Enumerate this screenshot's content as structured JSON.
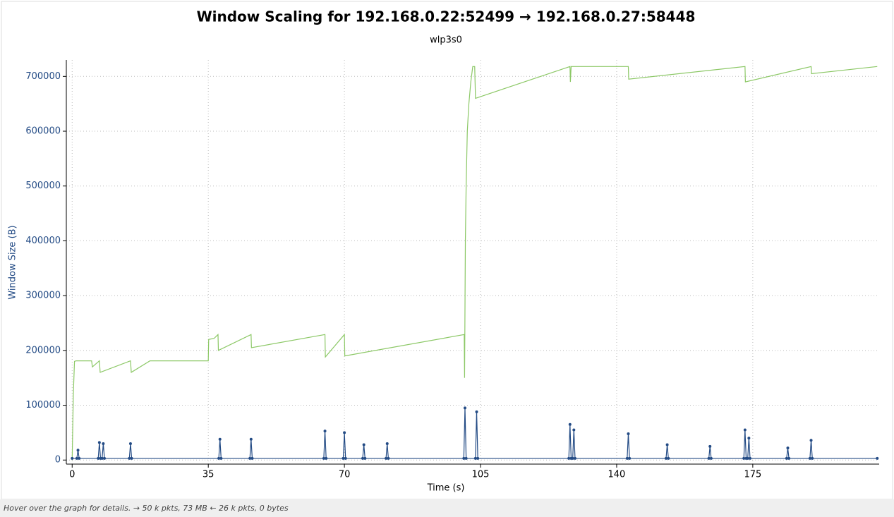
{
  "chart_data": {
    "type": "line",
    "title": "Window Scaling for 192.168.0.22:52499 → 192.168.0.27:58448",
    "subtitle": "wlp3s0",
    "x_label": "Time (s)",
    "y_label": "Window Size (B)",
    "xlim": [
      -1.5,
      207.5
    ],
    "ylim": [
      -7400,
      730000
    ],
    "xticks": [
      0,
      35,
      70,
      105,
      140,
      175
    ],
    "yticks": [
      0,
      100000,
      200000,
      300000,
      400000,
      500000,
      600000,
      700000
    ],
    "grid": true,
    "series": [
      {
        "color": "#8cc866",
        "markers": false,
        "x": [
          0,
          0.3,
          0.6,
          1,
          5,
          5.2,
          7,
          7.2,
          15,
          15.2,
          20,
          35,
          35.1,
          36.5,
          37.5,
          37.6,
          46,
          46.1,
          65,
          65.1,
          70,
          70.1,
          100.8,
          100.9,
          101.1,
          101.3,
          101.6,
          102,
          102.5,
          103,
          103.5,
          103.7,
          128,
          128.1,
          128.3,
          128.5,
          143,
          143.1,
          173,
          173.1,
          190,
          190.1,
          207
        ],
        "values": [
          0,
          120000,
          180000,
          181000,
          181000,
          170000,
          181000,
          160000,
          181000,
          160000,
          181000,
          181000,
          220000,
          222000,
          229000,
          200000,
          229000,
          205000,
          229000,
          188000,
          229000,
          190000,
          229000,
          150000,
          400000,
          500000,
          600000,
          650000,
          690000,
          718000,
          718000,
          660000,
          718000,
          690000,
          718000,
          718000,
          718000,
          695000,
          718000,
          690000,
          718000,
          705000,
          718000
        ]
      },
      {
        "color": "#234b85",
        "markers": true,
        "x": [
          0,
          1.2,
          1.5,
          1.8,
          6.7,
          7,
          7.3,
          7.7,
          8,
          8.3,
          14.7,
          15,
          15.3,
          37.7,
          38,
          38.3,
          45.7,
          46,
          46.3,
          64.7,
          65,
          65.3,
          69.7,
          70,
          70.3,
          74.7,
          75,
          75.3,
          80.7,
          81,
          81.3,
          100.7,
          101,
          101.3,
          103.7,
          104,
          104.3,
          127.7,
          128,
          128.3,
          128.7,
          129,
          129.3,
          142.7,
          143,
          143.3,
          152.7,
          153,
          153.3,
          163.7,
          164,
          164.3,
          172.7,
          173,
          173.3,
          173.7,
          174,
          174.3,
          183.7,
          184,
          184.3,
          189.7,
          190,
          190.3,
          207
        ],
        "values": [
          3000,
          3000,
          18000,
          3000,
          3000,
          32000,
          3000,
          3000,
          30000,
          3000,
          3000,
          30000,
          3000,
          3000,
          38000,
          3000,
          3000,
          38000,
          3000,
          3000,
          53000,
          3000,
          3000,
          50000,
          3000,
          3000,
          28000,
          3000,
          3000,
          30000,
          3000,
          3000,
          95000,
          3000,
          3000,
          88000,
          3000,
          3000,
          65000,
          3000,
          3000,
          55000,
          3000,
          3000,
          48000,
          3000,
          3000,
          28000,
          3000,
          3000,
          25000,
          3000,
          3000,
          55000,
          3000,
          3000,
          40000,
          3000,
          3000,
          22000,
          3000,
          3000,
          36000,
          3000,
          3000
        ]
      }
    ]
  },
  "status_bar": "Hover over the graph for details. → 50 k pkts, 73 MB ← 26 k pkts, 0 bytes"
}
